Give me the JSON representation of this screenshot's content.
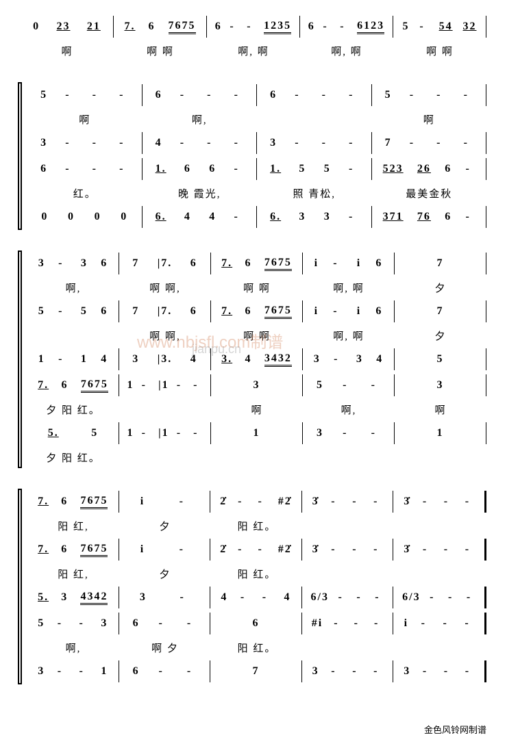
{
  "watermark_url": "www.nbjsfl.com制谱",
  "watermark_site": "jianpu.cn",
  "credit": "金色风铃网制谱",
  "systems": [
    {
      "staves": [
        {
          "measures": [
            "0 23 21",
            "7. 6 7675",
            "6 - - 1235",
            "6 - - 6123",
            "5 - 54 32"
          ]
        },
        {
          "lyric": true,
          "measures": [
            "啊",
            "啊 啊",
            "啊, 啊",
            "啊, 啊",
            "啊 啊"
          ]
        }
      ]
    },
    {
      "group": true,
      "staves": [
        {
          "measures": [
            "5 - - -",
            "6 - - -",
            "6 - - -",
            "5 - - -"
          ]
        },
        {
          "lyric": true,
          "measures": [
            "啊",
            "啊,",
            "",
            "啊"
          ]
        },
        {
          "measures": [
            "3 - - -",
            "4 - - -",
            "3 - - -",
            "7 - - -"
          ]
        },
        {
          "measures": [
            "6 - - -",
            "1. 6 6 -",
            "1. 5 5 -",
            "523 26 6 -"
          ]
        },
        {
          "lyric": true,
          "measures": [
            "红。",
            "晚 霞光,",
            "照 青松,",
            "最美金秋"
          ]
        },
        {
          "measures": [
            "0 0 0 0",
            "6. 4 4 -",
            "6. 3 3 -",
            "371 76 6 -"
          ]
        }
      ]
    },
    {
      "group": true,
      "staves": [
        {
          "measures": [
            "3 - 3 6",
            "7 |7. 6",
            "7. 6 7675",
            "i - i 6",
            "7"
          ]
        },
        {
          "lyric": true,
          "measures": [
            "啊,",
            "啊 啊,",
            "啊 啊",
            "啊, 啊",
            "夕"
          ]
        },
        {
          "measures": [
            "5 - 5 6",
            "7 |7. 6",
            "7. 6 7675",
            "i - i 6",
            "7"
          ]
        },
        {
          "lyric": true,
          "measures": [
            "",
            "啊 啊,",
            "啊 啊",
            "啊, 啊",
            "夕"
          ]
        },
        {
          "measures": [
            "1 - 1 4",
            "3 |3. 4",
            "3. 4 3432",
            "3 - 3 4",
            "5"
          ]
        },
        {
          "measures": [
            "7. 6 7675",
            "1 - |1 - -",
            "3",
            "5 - -",
            "3"
          ]
        },
        {
          "lyric": true,
          "measures": [
            "夕 阳 红。",
            "",
            "啊",
            "啊,",
            "啊"
          ]
        },
        {
          "measures": [
            "5. 5",
            "1 - |1 - -",
            "1",
            "3 - -",
            "1"
          ]
        },
        {
          "lyric": true,
          "measures": [
            "夕 阳 红。",
            "",
            "",
            "",
            ""
          ]
        }
      ]
    },
    {
      "group": true,
      "staves": [
        {
          "measures": [
            "7. 6 7675",
            "i -",
            "2̇ - - #2̇",
            "3̇ - - -",
            "3̇ - - -"
          ],
          "end": true
        },
        {
          "lyric": true,
          "measures": [
            "阳 红,",
            "夕",
            "阳 红。",
            "",
            ""
          ]
        },
        {
          "measures": [
            "7. 6 7675",
            "i -",
            "2̇ - - #2̇",
            "3̇ - - -",
            "3̇ - - -"
          ],
          "end": true
        },
        {
          "lyric": true,
          "measures": [
            "阳 红,",
            "夕",
            "阳 红。",
            "",
            ""
          ]
        },
        {
          "measures": [
            "5. 3 4342",
            "3 -",
            "4 - - 4",
            "6/3 - - -",
            "6/3 - - -"
          ],
          "end": true
        },
        {
          "measures": [
            "5 - - 3",
            "6 - -",
            "6",
            "#i - - -",
            "i - - -"
          ],
          "end": true
        },
        {
          "lyric": true,
          "measures": [
            "啊,",
            "啊 夕",
            "阳 红。",
            "",
            ""
          ]
        },
        {
          "measures": [
            "3 - - 1",
            "6 - -",
            "7",
            "3 - - -",
            "3 - - -"
          ],
          "end": true
        }
      ]
    }
  ]
}
